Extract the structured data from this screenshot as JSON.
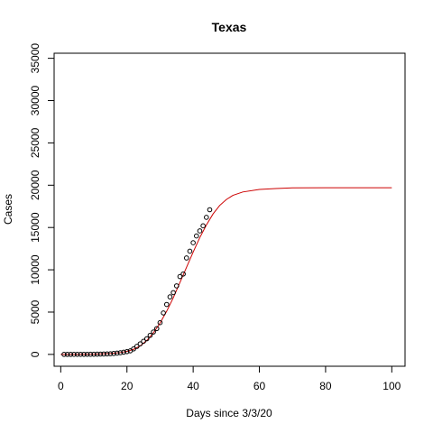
{
  "chart_data": {
    "type": "scatter",
    "title": "Texas",
    "xlabel": "Days since 3/3/20",
    "ylabel": "Cases",
    "xlim": [
      -2,
      104
    ],
    "ylim": [
      -1400,
      35600
    ],
    "x_ticks": [
      0,
      20,
      40,
      60,
      80,
      100
    ],
    "y_ticks": [
      0,
      5000,
      10000,
      15000,
      20000,
      25000,
      30000,
      35000
    ],
    "x_tick_labels": [
      "0",
      "20",
      "40",
      "60",
      "80",
      "100"
    ],
    "y_tick_labels": [
      "0",
      "5000",
      "10000",
      "15000",
      "20000",
      "25000",
      "30000",
      "35000"
    ],
    "grid": false,
    "series": [
      {
        "kind": "points",
        "marker": "open-circle",
        "color": "#000000",
        "x": [
          1,
          2,
          3,
          4,
          5,
          6,
          7,
          8,
          9,
          10,
          11,
          12,
          13,
          14,
          15,
          16,
          17,
          18,
          19,
          20,
          21,
          22,
          23,
          24,
          25,
          26,
          27,
          28,
          29,
          30,
          31,
          32,
          33,
          34,
          35,
          36,
          37,
          38,
          39,
          40,
          41,
          42,
          43,
          44,
          45
        ],
        "y": [
          1,
          2,
          3,
          5,
          6,
          8,
          10,
          12,
          15,
          20,
          30,
          40,
          50,
          60,
          80,
          110,
          150,
          200,
          260,
          330,
          420,
          650,
          950,
          1250,
          1550,
          1850,
          2250,
          2650,
          3050,
          3750,
          4900,
          5900,
          6800,
          7300,
          8100,
          9200,
          9500,
          11400,
          12200,
          13200,
          14000,
          14600,
          15200,
          16200,
          17100
        ]
      },
      {
        "kind": "line",
        "color": "#cc0000",
        "x": [
          0,
          5,
          10,
          15,
          18,
          20,
          22,
          24,
          26,
          28,
          30,
          32,
          34,
          36,
          38,
          40,
          42,
          44,
          46,
          48,
          50,
          52,
          55,
          60,
          65,
          70,
          80,
          90,
          100
        ],
        "y": [
          0,
          3,
          20,
          100,
          220,
          360,
          600,
          1000,
          1650,
          2550,
          3700,
          5100,
          6700,
          8500,
          10300,
          12100,
          13800,
          15300,
          16600,
          17600,
          18300,
          18800,
          19200,
          19500,
          19600,
          19680,
          19700,
          19700,
          19700
        ]
      }
    ]
  }
}
